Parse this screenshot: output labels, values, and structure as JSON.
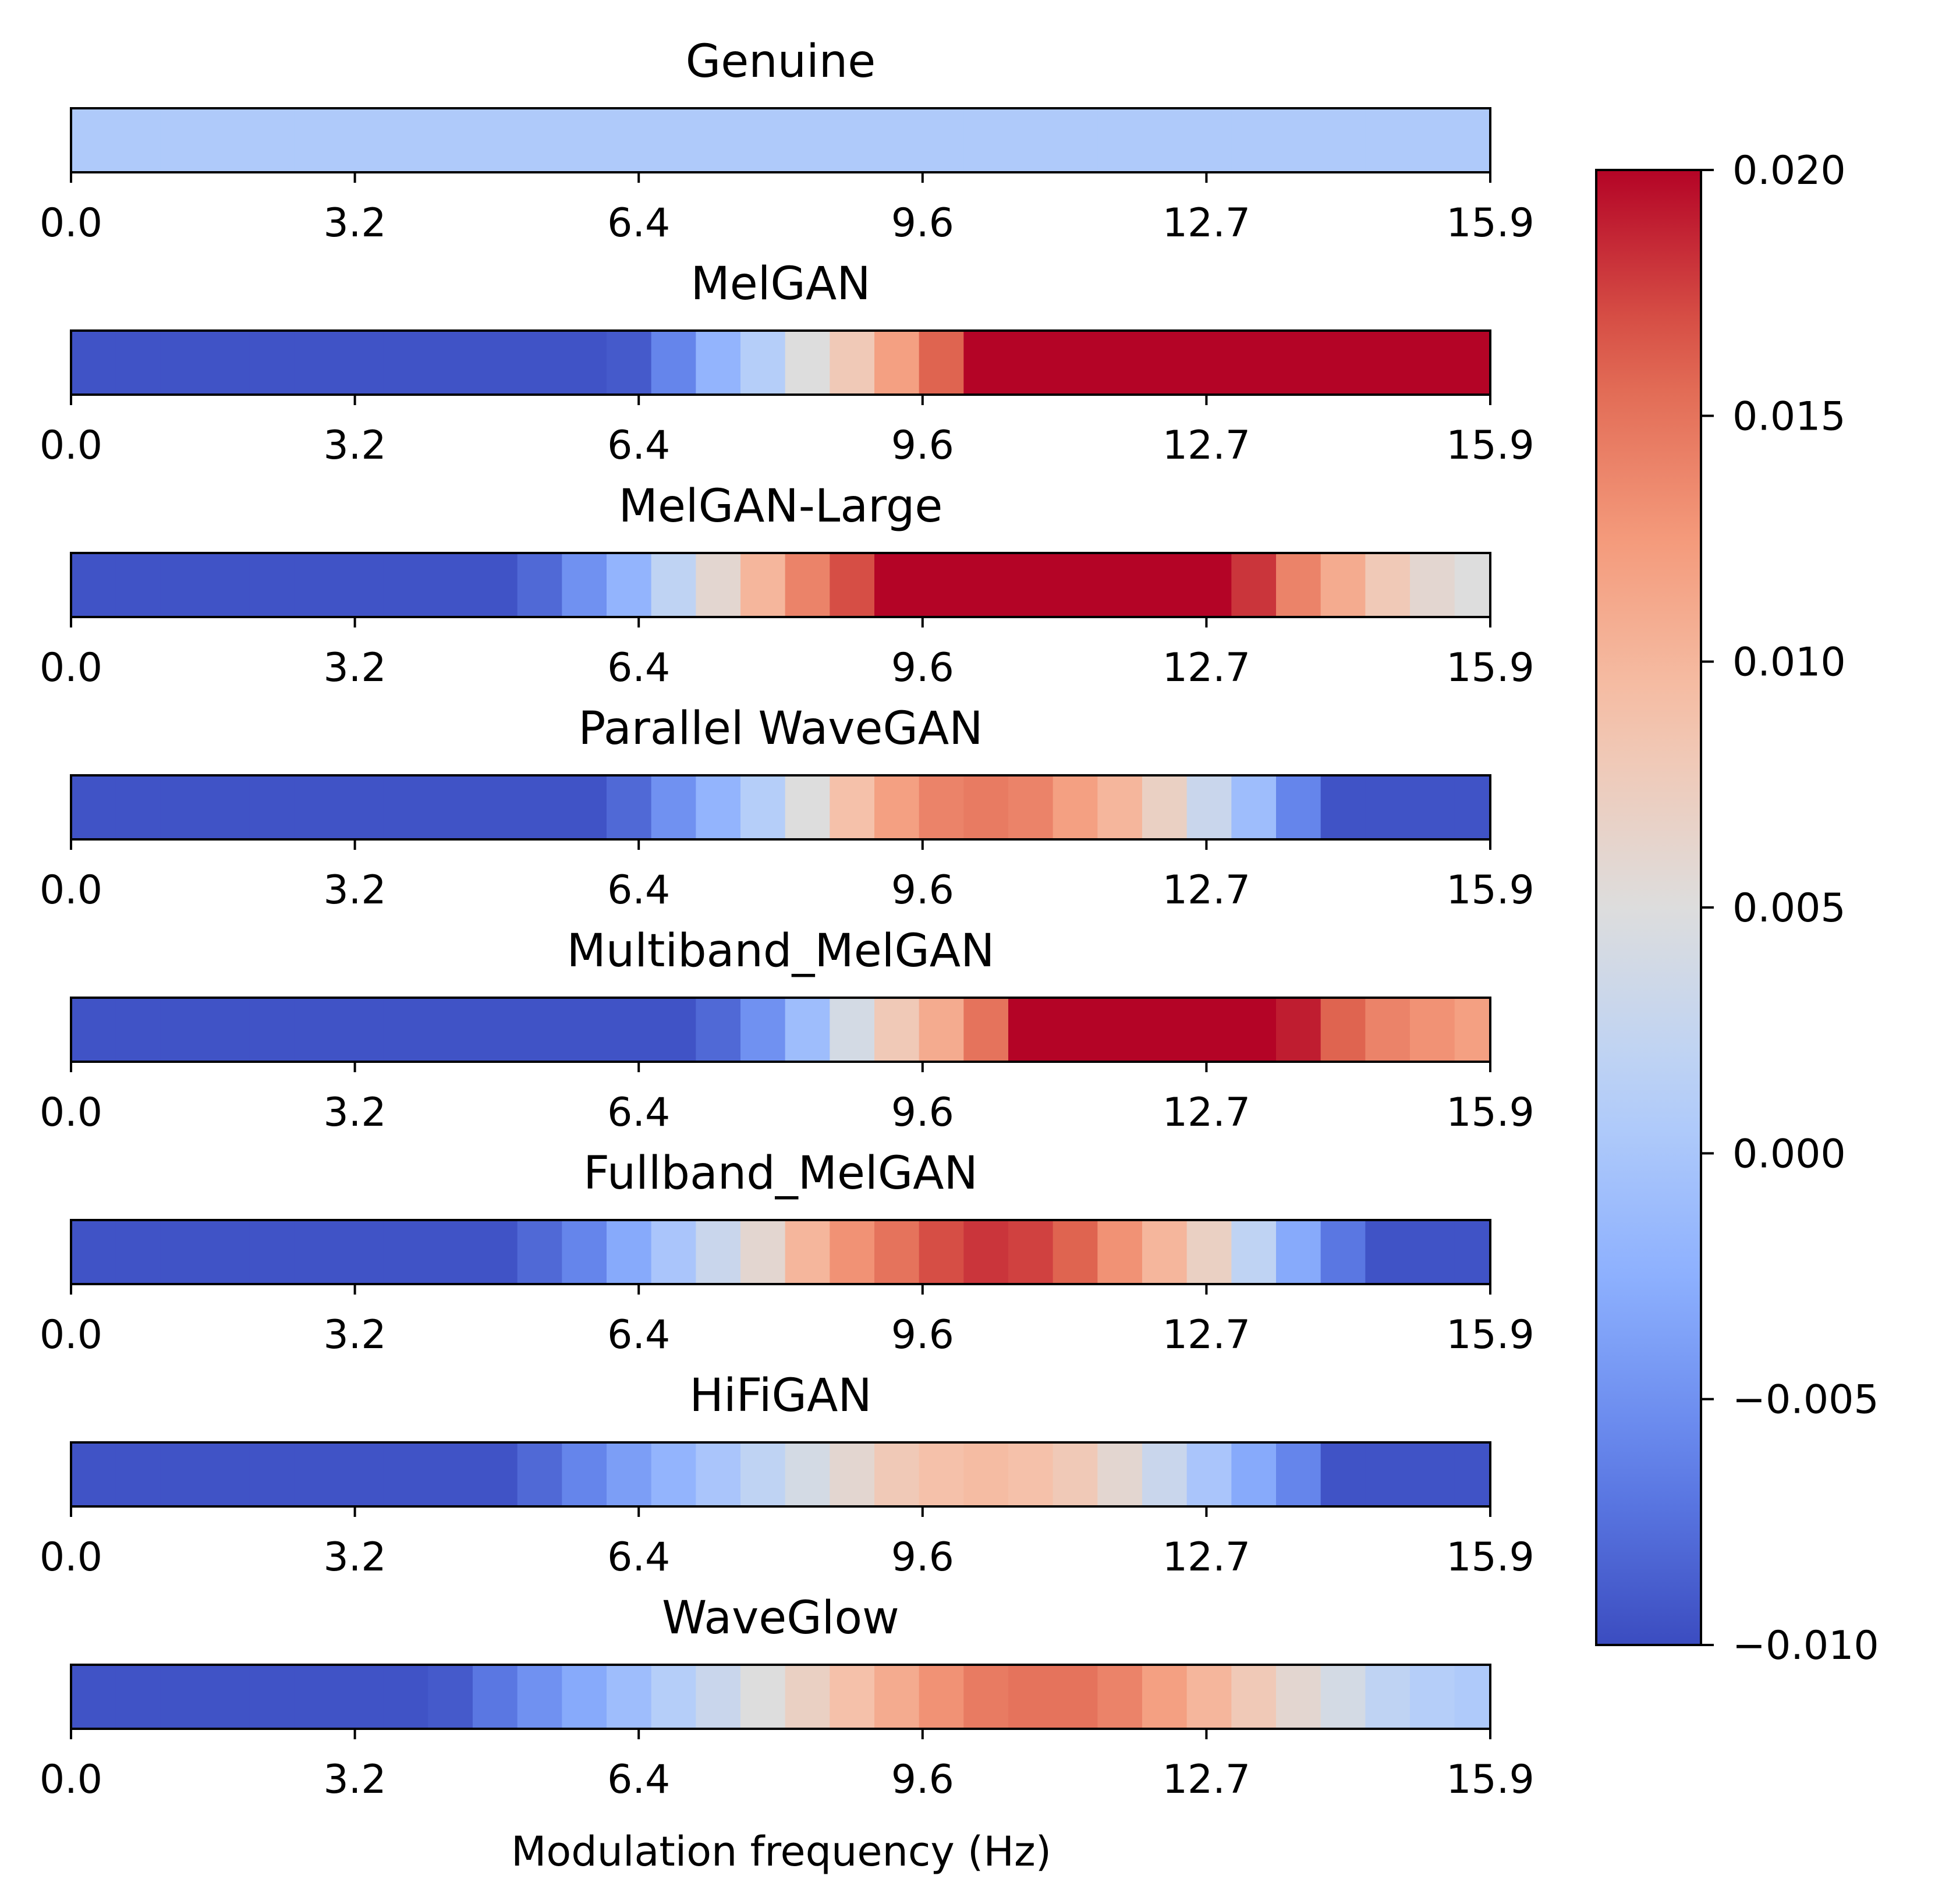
{
  "chart_data": {
    "type": "heatmap",
    "colormap": "coolwarm",
    "xlabel": "Modulation frequency (Hz)",
    "xlim": [
      0.0,
      15.9
    ],
    "x_ticks": [
      "0.0",
      "3.2",
      "6.4",
      "9.6",
      "12.7",
      "15.9"
    ],
    "x": [
      0.0,
      0.5,
      1.0,
      1.5,
      2.0,
      2.5,
      3.0,
      3.5,
      4.0,
      4.5,
      5.0,
      5.5,
      6.0,
      6.5,
      7.0,
      7.5,
      8.0,
      8.5,
      9.0,
      9.5,
      10.0,
      10.5,
      11.0,
      11.5,
      12.0,
      12.5,
      13.0,
      13.5,
      14.0,
      14.5,
      15.0,
      15.5
    ],
    "series": [
      {
        "name": "Genuine",
        "values": [
          0.0005,
          0.0005,
          0.0005,
          0.0005,
          0.0005,
          0.0005,
          0.0005,
          0.0005,
          0.0005,
          0.0005,
          0.0005,
          0.0005,
          0.0005,
          0.0005,
          0.0005,
          0.0005,
          0.0005,
          0.0005,
          0.0005,
          0.0005,
          0.0005,
          0.0005,
          0.0005,
          0.0005,
          0.0005,
          0.0005,
          0.0005,
          0.0005,
          0.0005,
          0.0005,
          0.0005,
          0.0005
        ]
      },
      {
        "name": "MelGAN",
        "values": [
          -0.0095,
          -0.0095,
          -0.0095,
          -0.0095,
          -0.0095,
          -0.0095,
          -0.0095,
          -0.0095,
          -0.0095,
          -0.0095,
          -0.0095,
          -0.0095,
          -0.009,
          -0.006,
          -0.002,
          0.001,
          0.005,
          0.008,
          0.012,
          0.016,
          0.02,
          0.02,
          0.02,
          0.02,
          0.02,
          0.02,
          0.02,
          0.02,
          0.02,
          0.02,
          0.02,
          0.02
        ]
      },
      {
        "name": "MelGAN-Large",
        "values": [
          -0.0095,
          -0.0095,
          -0.0095,
          -0.0095,
          -0.0095,
          -0.0095,
          -0.0095,
          -0.0095,
          -0.0095,
          -0.0095,
          -0.008,
          -0.005,
          -0.002,
          0.002,
          0.006,
          0.01,
          0.014,
          0.017,
          0.02,
          0.02,
          0.02,
          0.02,
          0.02,
          0.02,
          0.02,
          0.02,
          0.018,
          0.014,
          0.011,
          0.008,
          0.006,
          0.005
        ]
      },
      {
        "name": "Parallel WaveGAN",
        "values": [
          -0.0095,
          -0.0095,
          -0.0095,
          -0.0095,
          -0.0095,
          -0.0095,
          -0.0095,
          -0.0095,
          -0.0095,
          -0.0095,
          -0.0095,
          -0.0095,
          -0.008,
          -0.005,
          -0.002,
          0.001,
          0.005,
          0.009,
          0.012,
          0.014,
          0.0145,
          0.014,
          0.012,
          0.01,
          0.007,
          0.003,
          -0.001,
          -0.006,
          -0.0095,
          -0.0095,
          -0.0095,
          -0.0095
        ]
      },
      {
        "name": "Multiband_MelGAN",
        "values": [
          -0.0095,
          -0.0095,
          -0.0095,
          -0.0095,
          -0.0095,
          -0.0095,
          -0.0095,
          -0.0095,
          -0.0095,
          -0.0095,
          -0.0095,
          -0.0095,
          -0.0095,
          -0.0095,
          -0.008,
          -0.005,
          -0.001,
          0.004,
          0.008,
          0.011,
          0.015,
          0.02,
          0.02,
          0.02,
          0.02,
          0.02,
          0.02,
          0.019,
          0.016,
          0.014,
          0.013,
          0.012
        ]
      },
      {
        "name": "Fullband_MelGAN",
        "values": [
          -0.0095,
          -0.0095,
          -0.0095,
          -0.0095,
          -0.0095,
          -0.0095,
          -0.0095,
          -0.0095,
          -0.0095,
          -0.0095,
          -0.008,
          -0.006,
          -0.003,
          0.0,
          0.003,
          0.006,
          0.01,
          0.013,
          0.015,
          0.017,
          0.018,
          0.0175,
          0.016,
          0.013,
          0.01,
          0.007,
          0.002,
          -0.003,
          -0.007,
          -0.0095,
          -0.0095,
          -0.0095
        ]
      },
      {
        "name": "HiFiGAN",
        "values": [
          -0.0095,
          -0.0095,
          -0.0095,
          -0.0095,
          -0.0095,
          -0.0095,
          -0.0095,
          -0.0095,
          -0.0095,
          -0.0095,
          -0.008,
          -0.006,
          -0.004,
          -0.002,
          0.0,
          0.002,
          0.004,
          0.006,
          0.008,
          0.009,
          0.0095,
          0.009,
          0.008,
          0.006,
          0.003,
          0.0,
          -0.003,
          -0.006,
          -0.0095,
          -0.0095,
          -0.0095,
          -0.0095
        ]
      },
      {
        "name": "WaveGlow",
        "values": [
          -0.0095,
          -0.0095,
          -0.0095,
          -0.0095,
          -0.0095,
          -0.0095,
          -0.0095,
          -0.0095,
          -0.009,
          -0.007,
          -0.005,
          -0.003,
          -0.001,
          0.001,
          0.003,
          0.005,
          0.007,
          0.009,
          0.011,
          0.013,
          0.0145,
          0.015,
          0.015,
          0.014,
          0.012,
          0.01,
          0.008,
          0.006,
          0.004,
          0.002,
          0.001,
          0.0005
        ]
      }
    ],
    "colorbar": {
      "range": [
        -0.01,
        0.02
      ],
      "ticks": [
        0.02,
        0.015,
        0.01,
        0.005,
        0.0,
        -0.005,
        -0.01
      ],
      "tick_labels": [
        "0.020",
        "0.015",
        "0.010",
        "0.005",
        "0.000",
        "−0.005",
        "−0.010"
      ],
      "position": "right"
    }
  }
}
